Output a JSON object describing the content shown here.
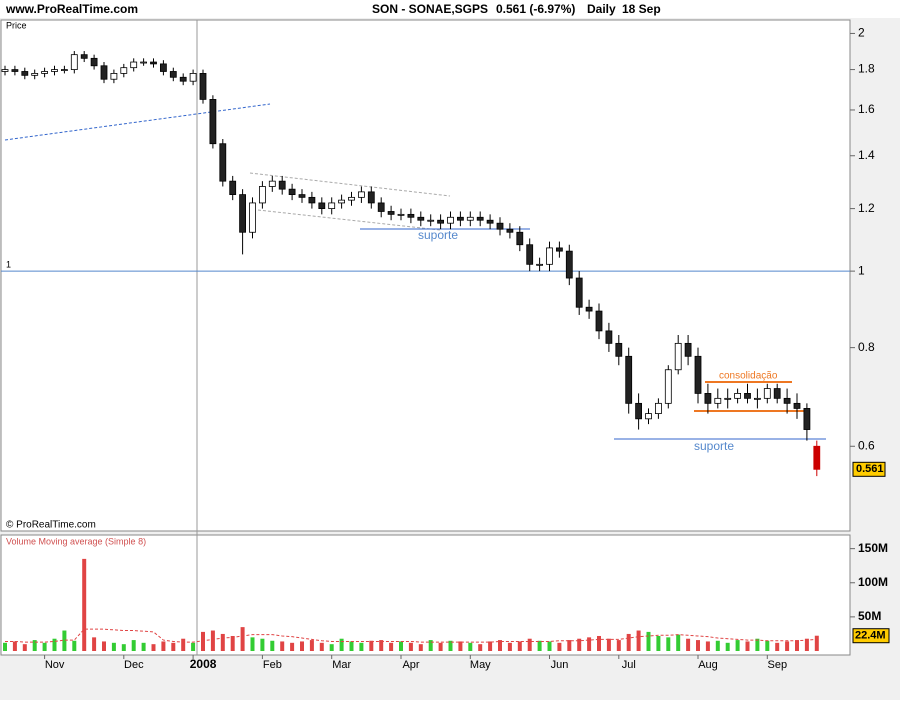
{
  "header": {
    "site": "www.ProRealTime.com",
    "symbol": "SON - SONAE,SGPS",
    "quote": "0.561 (-6.97%)",
    "period": "Daily",
    "date": "18 Sep"
  },
  "chart_data": [
    {
      "type": "candlestick",
      "y_label": "Price",
      "copyright": "© ProRealTime.com",
      "log_scale": true,
      "ylim": [
        0.47,
        2.08
      ],
      "yticks": [
        2,
        1.8,
        1.6,
        1.4,
        1.2,
        1,
        0.8,
        0.6
      ],
      "level_line": 1,
      "up_color": "#ffffff",
      "down_color": "#222222",
      "annotations": [
        "suporte",
        "consolidação",
        "suporte"
      ],
      "open": [
        1.79,
        1.8,
        1.79,
        1.77,
        1.78,
        1.79,
        1.8,
        1.8,
        1.88,
        1.86,
        1.82,
        1.75,
        1.78,
        1.81,
        1.84,
        1.84,
        1.83,
        1.79,
        1.76,
        1.74,
        1.78,
        1.65,
        1.45,
        1.3,
        1.25,
        1.12,
        1.22,
        1.28,
        1.3,
        1.27,
        1.25,
        1.24,
        1.22,
        1.2,
        1.22,
        1.23,
        1.24,
        1.26,
        1.22,
        1.19,
        1.18,
        1.18,
        1.17,
        1.16,
        1.16,
        1.15,
        1.17,
        1.16,
        1.17,
        1.16,
        1.15,
        1.13,
        1.12,
        1.08,
        1.02,
        1.02,
        1.07,
        1.06,
        0.98,
        0.9,
        0.89,
        0.84,
        0.81,
        0.78,
        0.68,
        0.65,
        0.66,
        0.68,
        0.75,
        0.81,
        0.78,
        0.7,
        0.68,
        0.69,
        0.69,
        0.7,
        0.69,
        0.69,
        0.71,
        0.69,
        0.68,
        0.67,
        0.6
      ],
      "high": [
        1.82,
        1.82,
        1.81,
        1.8,
        1.81,
        1.82,
        1.82,
        1.9,
        1.9,
        1.88,
        1.84,
        1.8,
        1.83,
        1.86,
        1.86,
        1.86,
        1.85,
        1.81,
        1.78,
        1.8,
        1.8,
        1.67,
        1.47,
        1.32,
        1.27,
        1.24,
        1.3,
        1.32,
        1.32,
        1.29,
        1.27,
        1.26,
        1.24,
        1.24,
        1.25,
        1.26,
        1.28,
        1.28,
        1.24,
        1.21,
        1.2,
        1.2,
        1.19,
        1.18,
        1.18,
        1.19,
        1.19,
        1.19,
        1.19,
        1.18,
        1.17,
        1.15,
        1.14,
        1.1,
        1.04,
        1.09,
        1.09,
        1.08,
        1.0,
        0.92,
        0.91,
        0.86,
        0.83,
        0.8,
        0.7,
        0.67,
        0.69,
        0.76,
        0.83,
        0.83,
        0.8,
        0.72,
        0.71,
        0.71,
        0.71,
        0.72,
        0.71,
        0.72,
        0.72,
        0.71,
        0.7,
        0.68,
        0.61
      ],
      "low": [
        1.77,
        1.77,
        1.75,
        1.75,
        1.76,
        1.77,
        1.78,
        1.78,
        1.84,
        1.8,
        1.73,
        1.73,
        1.76,
        1.79,
        1.82,
        1.81,
        1.77,
        1.74,
        1.72,
        1.72,
        1.63,
        1.43,
        1.28,
        1.23,
        1.05,
        1.1,
        1.2,
        1.26,
        1.25,
        1.23,
        1.22,
        1.2,
        1.18,
        1.18,
        1.2,
        1.21,
        1.22,
        1.2,
        1.17,
        1.16,
        1.16,
        1.15,
        1.14,
        1.14,
        1.13,
        1.13,
        1.14,
        1.14,
        1.14,
        1.13,
        1.11,
        1.1,
        1.06,
        1.0,
        1.0,
        1.0,
        1.04,
        0.96,
        0.88,
        0.87,
        0.82,
        0.79,
        0.76,
        0.66,
        0.63,
        0.64,
        0.65,
        0.67,
        0.74,
        0.76,
        0.68,
        0.66,
        0.67,
        0.67,
        0.68,
        0.68,
        0.67,
        0.68,
        0.68,
        0.66,
        0.65,
        0.61,
        0.55
      ],
      "close": [
        1.8,
        1.79,
        1.77,
        1.78,
        1.79,
        1.8,
        1.8,
        1.88,
        1.86,
        1.82,
        1.75,
        1.78,
        1.81,
        1.84,
        1.84,
        1.83,
        1.79,
        1.76,
        1.74,
        1.78,
        1.65,
        1.45,
        1.3,
        1.25,
        1.12,
        1.22,
        1.28,
        1.3,
        1.27,
        1.25,
        1.24,
        1.22,
        1.2,
        1.22,
        1.23,
        1.24,
        1.26,
        1.22,
        1.19,
        1.18,
        1.18,
        1.17,
        1.16,
        1.16,
        1.15,
        1.17,
        1.16,
        1.17,
        1.16,
        1.15,
        1.13,
        1.12,
        1.08,
        1.02,
        1.02,
        1.07,
        1.06,
        0.98,
        0.9,
        0.89,
        0.84,
        0.81,
        0.78,
        0.68,
        0.65,
        0.66,
        0.68,
        0.75,
        0.81,
        0.78,
        0.7,
        0.68,
        0.69,
        0.69,
        0.7,
        0.69,
        0.69,
        0.71,
        0.69,
        0.68,
        0.67,
        0.63,
        0.561
      ]
    },
    {
      "type": "bar",
      "title": "Volume Moving average (Simple 8)",
      "categories": [
        null,
        null,
        null,
        null,
        "Nov",
        null,
        null,
        null,
        null,
        null,
        null,
        null,
        "Dec",
        null,
        null,
        null,
        null,
        null,
        null,
        "2008",
        null,
        null,
        null,
        null,
        null,
        null,
        "Feb",
        null,
        null,
        null,
        null,
        null,
        null,
        "Mar",
        null,
        null,
        null,
        null,
        null,
        null,
        "Apr",
        null,
        null,
        null,
        null,
        null,
        null,
        "May",
        null,
        null,
        null,
        null,
        null,
        null,
        null,
        "Jun",
        null,
        null,
        null,
        null,
        null,
        null,
        "Jul",
        null,
        null,
        null,
        null,
        null,
        null,
        null,
        "Aug",
        null,
        null,
        null,
        null,
        null,
        null,
        "Sep",
        null,
        null,
        null,
        null,
        null
      ],
      "ylim": [
        0,
        170
      ],
      "yticks": [
        {
          "value": 150,
          "label": "150M"
        },
        {
          "value": 100,
          "label": "100M"
        },
        {
          "value": 50,
          "label": "50M"
        }
      ],
      "up_color": "#33cc33",
      "down_color": "#e04444",
      "ma_color": "#e04444",
      "last_label": "22.4M",
      "values": [
        12,
        14,
        10,
        16,
        12,
        18,
        30,
        15,
        135,
        20,
        14,
        12,
        10,
        16,
        12,
        10,
        14,
        12,
        18,
        12,
        28,
        30,
        25,
        22,
        35,
        20,
        18,
        15,
        14,
        12,
        14,
        16,
        12,
        10,
        18,
        14,
        12,
        15,
        16,
        12,
        14,
        12,
        10,
        16,
        12,
        15,
        14,
        12,
        10,
        14,
        16,
        12,
        14,
        18,
        15,
        14,
        12,
        16,
        18,
        20,
        22,
        18,
        16,
        25,
        30,
        28,
        22,
        20,
        24,
        18,
        16,
        14,
        15,
        12,
        16,
        14,
        18,
        15,
        12,
        14,
        16,
        18,
        22.4
      ],
      "moving_average": [
        14,
        14,
        13,
        13,
        13,
        14,
        16,
        16,
        32,
        32,
        32,
        31,
        30,
        30,
        29,
        28,
        16,
        14,
        13,
        13,
        15,
        17,
        19,
        20,
        22,
        24,
        24,
        24,
        22,
        21,
        19,
        17,
        15,
        14,
        14,
        14,
        14,
        14,
        14,
        14,
        14,
        14,
        13,
        13,
        13,
        13,
        13,
        13,
        13,
        13,
        14,
        14,
        14,
        14,
        14,
        14,
        15,
        15,
        15,
        16,
        17,
        17,
        17,
        19,
        21,
        22,
        23,
        23,
        24,
        23,
        22,
        21,
        19,
        18,
        17,
        16,
        16,
        15,
        15,
        15,
        15,
        16,
        17
      ]
    }
  ]
}
